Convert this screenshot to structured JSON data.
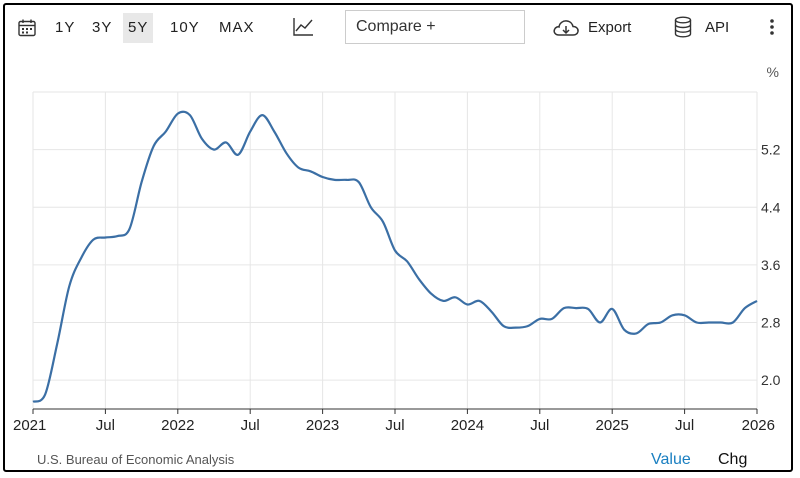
{
  "toolbar": {
    "ranges": [
      "1Y",
      "3Y",
      "5Y",
      "10Y",
      "MAX"
    ],
    "active_range": "5Y",
    "compare_placeholder": "Compare +",
    "export_label": "Export",
    "api_label": "API",
    "icons": [
      "calendar-icon",
      "line-chart-icon",
      "cloud-download-icon",
      "database-icon",
      "more-vertical-icon"
    ]
  },
  "footer": {
    "source": "U.S. Bureau of Economic Analysis",
    "value_tab": "Value",
    "chg_tab": "Chg"
  },
  "colors": {
    "line": "#3b6fa5",
    "active_tab": "#1a7fc1",
    "grid": "#e6e6e6"
  },
  "chart_data": {
    "type": "line",
    "unit_label": "%",
    "ylim": [
      1.6,
      6.0
    ],
    "yticks": [
      2.0,
      2.8,
      3.6,
      4.4,
      5.2
    ],
    "ytick_labels": [
      "2.0",
      "2.8",
      "3.6",
      "4.4",
      "5.2"
    ],
    "xlim": [
      "2021-01",
      "2026-01"
    ],
    "xticks": [
      "2021-01",
      "2021-07",
      "2022-01",
      "2022-07",
      "2023-01",
      "2023-07",
      "2024-01",
      "2024-07",
      "2025-01",
      "2025-07",
      "2026-01"
    ],
    "xtick_labels": [
      "2021",
      "Jul",
      "2022",
      "Jul",
      "2023",
      "Jul",
      "2024",
      "Jul",
      "2025",
      "Jul",
      "2026"
    ],
    "grid": true,
    "series": [
      {
        "x": [
          "2021-01",
          "2021-02",
          "2021-03",
          "2021-04",
          "2021-05",
          "2021-06",
          "2021-07",
          "2021-08",
          "2021-09",
          "2021-10",
          "2021-11",
          "2021-12",
          "2022-01",
          "2022-02",
          "2022-03",
          "2022-04",
          "2022-05",
          "2022-06",
          "2022-07",
          "2022-08",
          "2022-09",
          "2022-10",
          "2022-11",
          "2022-12",
          "2023-01",
          "2023-02",
          "2023-03",
          "2023-04",
          "2023-05",
          "2023-06",
          "2023-07",
          "2023-08",
          "2023-09",
          "2023-10",
          "2023-11",
          "2023-12",
          "2024-01",
          "2024-02",
          "2024-03",
          "2024-04",
          "2024-05",
          "2024-06",
          "2024-07",
          "2024-08",
          "2024-09",
          "2024-10",
          "2024-11",
          "2024-12",
          "2025-01",
          "2025-02",
          "2025-03",
          "2025-04",
          "2025-05",
          "2025-06",
          "2025-07",
          "2025-08",
          "2025-09",
          "2025-10",
          "2025-11",
          "2025-12",
          "2026-01"
        ],
        "values": [
          1.7,
          1.8,
          2.5,
          3.3,
          3.7,
          3.95,
          3.98,
          4.0,
          4.1,
          4.75,
          5.25,
          5.45,
          5.7,
          5.68,
          5.35,
          5.2,
          5.3,
          5.13,
          5.45,
          5.68,
          5.45,
          5.15,
          4.95,
          4.9,
          4.82,
          4.78,
          4.78,
          4.75,
          4.4,
          4.2,
          3.8,
          3.65,
          3.4,
          3.2,
          3.1,
          3.15,
          3.05,
          3.1,
          2.95,
          2.75,
          2.73,
          2.75,
          2.85,
          2.85,
          3.0,
          3.0,
          2.99,
          2.8,
          2.99,
          2.7,
          2.65,
          2.78,
          2.8,
          2.9,
          2.9,
          2.8,
          2.8,
          2.8,
          2.8,
          3.0,
          3.1
        ]
      }
    ]
  }
}
